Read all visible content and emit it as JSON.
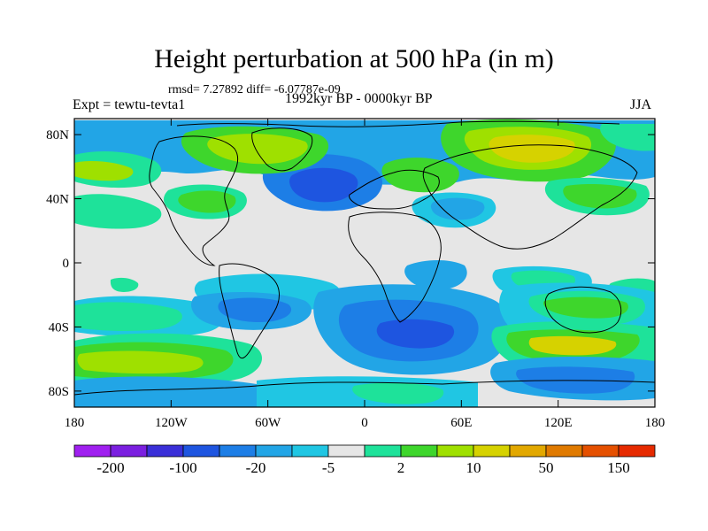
{
  "title": "Height perturbation at 500 hPa (in m)",
  "stats": "rmsd= 7.27892 diff= -6.07787e-09",
  "left_label": "Expt = tewtu-tevta1",
  "center_label": "1992kyr BP - 0000kyr BP",
  "right_label": "JJA",
  "axes": {
    "x_ticks": [
      "180",
      "120W",
      "60W",
      "0",
      "60E",
      "120E",
      "180"
    ],
    "x_tick_lon": [
      -180,
      -120,
      -60,
      0,
      60,
      120,
      180
    ],
    "y_ticks": [
      "80N",
      "40N",
      "0",
      "40S",
      "80S"
    ],
    "y_tick_lat": [
      80,
      40,
      0,
      -40,
      -80
    ],
    "lon_range": [
      -180,
      180
    ],
    "lat_range": [
      -90,
      90
    ]
  },
  "colorbar": {
    "colors": [
      "#a020f0",
      "#7b1fe0",
      "#3a2fd8",
      "#1e55e0",
      "#1d7ee6",
      "#22a5e6",
      "#20c6e3",
      "#e6e6e6",
      "#1ee29a",
      "#3ed62c",
      "#9fe000",
      "#d6d200",
      "#e2a800",
      "#e07a00",
      "#e55000",
      "#e62a00"
    ],
    "labels": [
      "-200",
      "-100",
      "-20",
      "-5",
      "2",
      "10",
      "50",
      "150"
    ]
  },
  "field_colors": {
    "background": "#e6e6e6",
    "blue_dark": "#1e55e0",
    "blue_mid": "#1d7ee6",
    "blue_light": "#22a5e6",
    "cyan": "#20c6e3",
    "teal": "#1ee29a",
    "green": "#3ed62c",
    "yellowgreen": "#9fe000",
    "yellow": "#d6d200",
    "orange": "#e2a800"
  }
}
